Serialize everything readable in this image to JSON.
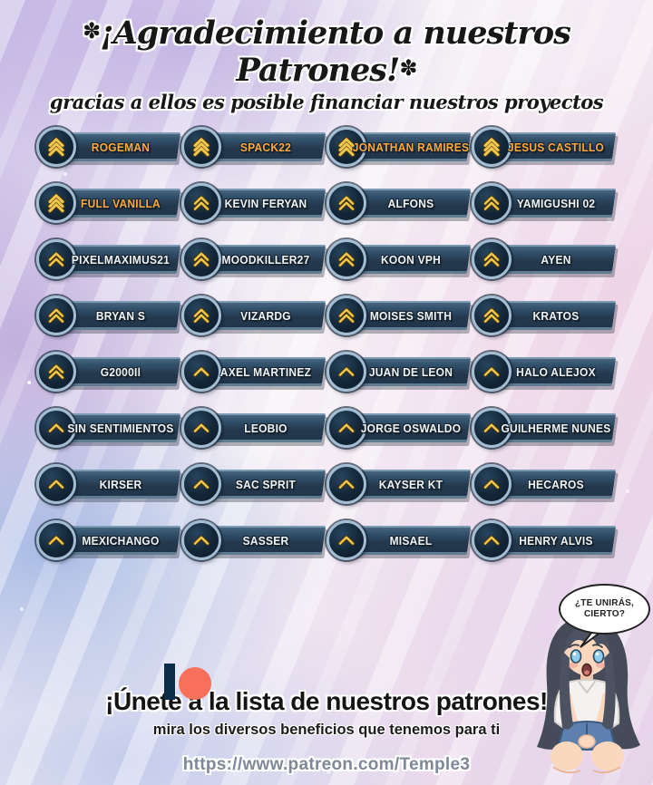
{
  "header": {
    "decor_left": "✽",
    "decor_right": "✽",
    "title": "¡Agradecimiento a nuestros Patrones!",
    "subtitle": "gracias a ellos es posible financiar nuestros proyectos"
  },
  "patrons": [
    {
      "name": "ROGEMAN",
      "chevrons": 3,
      "highlight": true
    },
    {
      "name": "SPACK22",
      "chevrons": 3,
      "highlight": true
    },
    {
      "name": "JONATHAN RAMIRES",
      "chevrons": 3,
      "highlight": true
    },
    {
      "name": "JESUS CASTILLO",
      "chevrons": 3,
      "highlight": true
    },
    {
      "name": "FULL VANILLA",
      "chevrons": 3,
      "highlight": true
    },
    {
      "name": "KEVIN FERYAN",
      "chevrons": 2,
      "highlight": false
    },
    {
      "name": "ALFONS",
      "chevrons": 2,
      "highlight": false
    },
    {
      "name": "YAMIGUSHI 02",
      "chevrons": 2,
      "highlight": false
    },
    {
      "name": "PIXELMAXIMUS21",
      "chevrons": 2,
      "highlight": false
    },
    {
      "name": "MOODKILLER27",
      "chevrons": 2,
      "highlight": false
    },
    {
      "name": "KOON VPH",
      "chevrons": 2,
      "highlight": false
    },
    {
      "name": "AYEN",
      "chevrons": 2,
      "highlight": false
    },
    {
      "name": "BRYAN S",
      "chevrons": 2,
      "highlight": false
    },
    {
      "name": "VIZARDG",
      "chevrons": 2,
      "highlight": false
    },
    {
      "name": "MOISES SMITH",
      "chevrons": 2,
      "highlight": false
    },
    {
      "name": "KRATOS",
      "chevrons": 2,
      "highlight": false
    },
    {
      "name": "G2000Il",
      "chevrons": 2,
      "highlight": false
    },
    {
      "name": "AXEL MARTINEZ",
      "chevrons": 1,
      "highlight": false
    },
    {
      "name": "JUAN DE LEON",
      "chevrons": 1,
      "highlight": false
    },
    {
      "name": "HALO ALEJOX",
      "chevrons": 1,
      "highlight": false
    },
    {
      "name": "SIN SENTIMIENTOS",
      "chevrons": 1,
      "highlight": false
    },
    {
      "name": "LEOBIO",
      "chevrons": 1,
      "highlight": false
    },
    {
      "name": "JORGE OSWALDO",
      "chevrons": 1,
      "highlight": false
    },
    {
      "name": "GUILHERME NUNES",
      "chevrons": 1,
      "highlight": false
    },
    {
      "name": "KIRSER",
      "chevrons": 1,
      "highlight": false
    },
    {
      "name": "SAC SPRIT",
      "chevrons": 1,
      "highlight": false
    },
    {
      "name": "KAYSER KT",
      "chevrons": 1,
      "highlight": false
    },
    {
      "name": "HECAROS",
      "chevrons": 1,
      "highlight": false
    },
    {
      "name": "MEXICHANGO",
      "chevrons": 1,
      "highlight": false
    },
    {
      "name": "SASSER",
      "chevrons": 1,
      "highlight": false
    },
    {
      "name": "MISAEL",
      "chevrons": 1,
      "highlight": false
    },
    {
      "name": "HENRY ALVIS",
      "chevrons": 1,
      "highlight": false
    }
  ],
  "speech_bubble": {
    "line1": "¿TE UNIRÁS,",
    "line2": "CIERTO?"
  },
  "footer": {
    "headline": "¡Únete a la lista de nuestros patrones!",
    "subline": "mira los diversos beneficios que tenemos para ti",
    "url": "https://www.patreon.com/Temple3"
  },
  "colors": {
    "accent_orange": "#f9a93e",
    "chevron_gold": "#f0c64f",
    "chevron_outline": "#403410",
    "bar_dark": "#24394d",
    "bar_edge_light": "#7d9cb4",
    "ring_light": "#a3bdd3",
    "patreon_coral": "#f9705a",
    "patreon_navy": "#0b2d49",
    "url_gray": "#7e8898"
  },
  "icons": {
    "rank_chevron": "rank-chevron-icon",
    "patreon_logo": "patreon-logo"
  }
}
